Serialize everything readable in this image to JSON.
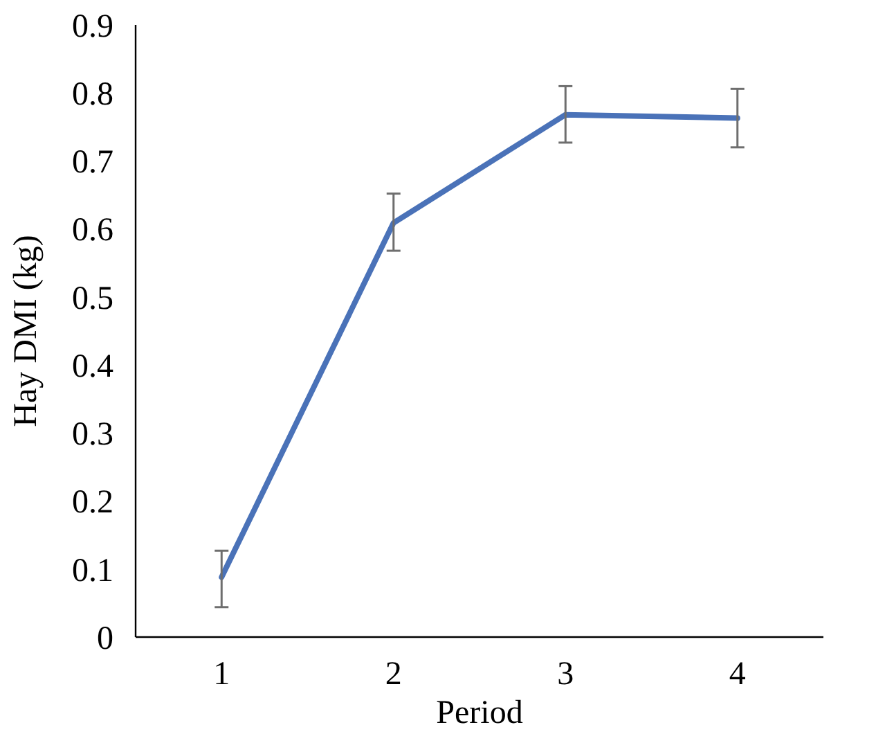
{
  "chart_data": {
    "type": "line",
    "xlabel": "Period",
    "ylabel": "Hay DMI (kg)",
    "categories": [
      "1",
      "2",
      "3",
      "4"
    ],
    "series": [
      {
        "color": "#4a72b8",
        "values": [
          0.088,
          0.609,
          0.768,
          0.763
        ],
        "errors": [
          [
            0.044,
            0.127
          ],
          [
            0.568,
            0.652
          ],
          [
            0.727,
            0.81
          ],
          [
            0.72,
            0.806
          ]
        ]
      }
    ],
    "ylim": [
      0,
      0.9
    ],
    "yticks": [
      {
        "value": 0,
        "label": "0"
      },
      0.1,
      0.2,
      0.3,
      0.4,
      0.5,
      0.6,
      0.7,
      0.8,
      0.9
    ],
    "marker": "none",
    "line_style": "solid"
  }
}
